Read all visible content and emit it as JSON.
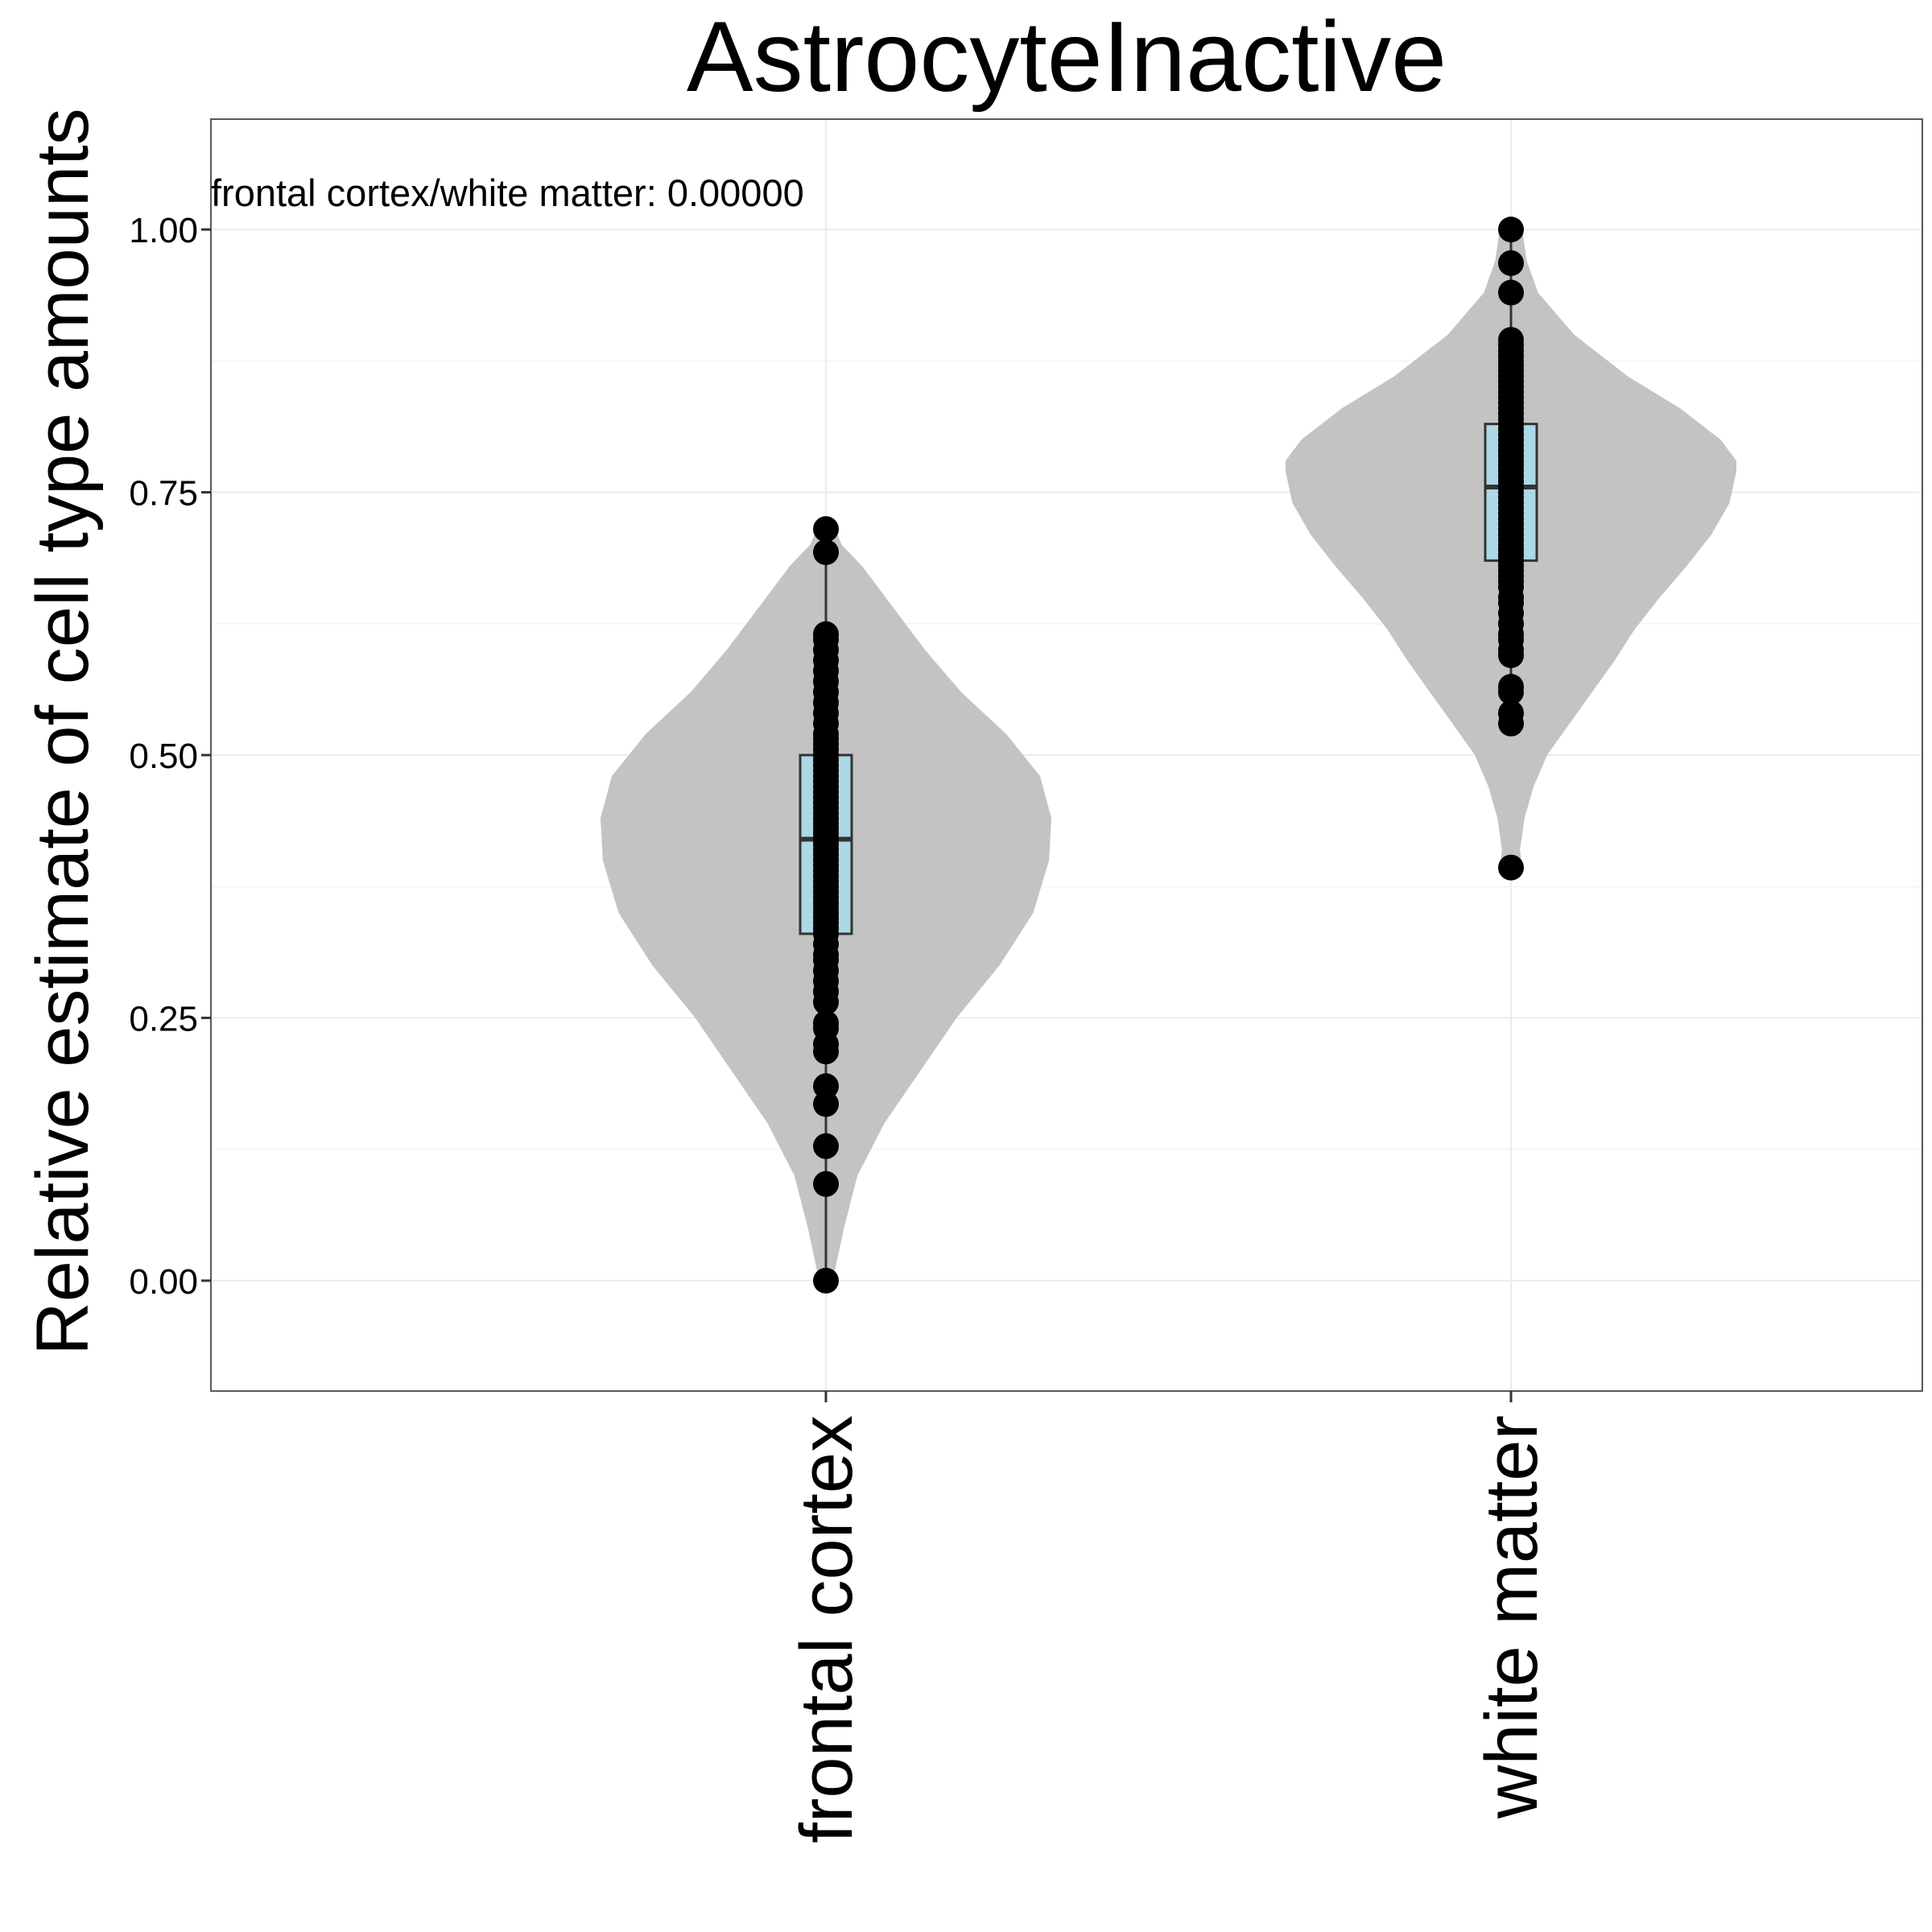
{
  "chart_data": {
    "type": "violin",
    "title": "AstrocyteInactive",
    "xlabel": "",
    "ylabel": "Relative estimate of cell type amounts",
    "annotation": "frontal cortex/white matter: 0.00000",
    "categories": [
      "frontal cortex",
      "white matter"
    ],
    "ylim": [
      -0.105,
      1.105
    ],
    "yticks": [
      0,
      0.25,
      0.5,
      0.75,
      1
    ],
    "ytick_labels": [
      "0.00",
      "0.25",
      "0.50",
      "0.75",
      "1.00"
    ],
    "grid": true,
    "legend": "none",
    "colors": {
      "violin": "#c3c3c3",
      "box_fill": "#add8e6",
      "box_stroke": "#333333",
      "points": "#000000",
      "grid_major": "#ebebeb",
      "grid_minor": "#f5f5f5",
      "panel_border": "#595959"
    },
    "groups": [
      {
        "name": "frontal cortex",
        "box": {
          "q1": 0.33,
          "median": 0.42,
          "q3": 0.5,
          "whisker_low": 0.0,
          "whisker_high": 0.715
        },
        "violin": {
          "y": [
            0.0,
            0.02,
            0.05,
            0.1,
            0.15,
            0.2,
            0.25,
            0.3,
            0.35,
            0.4,
            0.44,
            0.48,
            0.52,
            0.56,
            0.6,
            0.64,
            0.68,
            0.7,
            0.715
          ],
          "density": [
            0.03,
            0.05,
            0.08,
            0.14,
            0.26,
            0.42,
            0.58,
            0.77,
            0.92,
            0.99,
            1.0,
            0.95,
            0.8,
            0.6,
            0.44,
            0.3,
            0.16,
            0.07,
            0.04
          ]
        },
        "points": [
          0.0,
          0.092,
          0.128,
          0.168,
          0.185,
          0.218,
          0.225,
          0.24,
          0.245,
          0.265,
          0.275,
          0.285,
          0.295,
          0.305,
          0.31,
          0.32,
          0.33,
          0.335,
          0.34,
          0.345,
          0.35,
          0.355,
          0.36,
          0.365,
          0.37,
          0.375,
          0.38,
          0.385,
          0.39,
          0.395,
          0.4,
          0.405,
          0.41,
          0.415,
          0.42,
          0.425,
          0.43,
          0.435,
          0.44,
          0.445,
          0.45,
          0.455,
          0.46,
          0.465,
          0.47,
          0.475,
          0.48,
          0.485,
          0.49,
          0.495,
          0.5,
          0.505,
          0.51,
          0.515,
          0.52,
          0.53,
          0.54,
          0.55,
          0.56,
          0.57,
          0.58,
          0.59,
          0.6,
          0.61,
          0.615,
          0.693,
          0.715
        ]
      },
      {
        "name": "white matter",
        "box": {
          "q1": 0.685,
          "median": 0.755,
          "q3": 0.815,
          "whisker_low": 0.53,
          "whisker_high": 1.0
        },
        "violin": {
          "y": [
            0.39,
            0.41,
            0.44,
            0.47,
            0.5,
            0.53,
            0.56,
            0.59,
            0.62,
            0.65,
            0.68,
            0.71,
            0.74,
            0.77,
            0.78,
            0.8,
            0.83,
            0.86,
            0.9,
            0.94,
            0.97,
            1.0
          ],
          "density": [
            0.05,
            0.04,
            0.06,
            0.1,
            0.16,
            0.26,
            0.36,
            0.46,
            0.55,
            0.66,
            0.78,
            0.89,
            0.97,
            1.0,
            1.0,
            0.93,
            0.75,
            0.52,
            0.28,
            0.12,
            0.07,
            0.05
          ]
        },
        "points": [
          0.393,
          0.53,
          0.54,
          0.56,
          0.565,
          0.595,
          0.6,
          0.61,
          0.615,
          0.625,
          0.635,
          0.645,
          0.65,
          0.66,
          0.665,
          0.67,
          0.675,
          0.68,
          0.685,
          0.69,
          0.695,
          0.7,
          0.705,
          0.71,
          0.715,
          0.72,
          0.725,
          0.73,
          0.735,
          0.74,
          0.745,
          0.75,
          0.755,
          0.76,
          0.765,
          0.77,
          0.775,
          0.78,
          0.785,
          0.79,
          0.795,
          0.8,
          0.805,
          0.81,
          0.815,
          0.82,
          0.825,
          0.83,
          0.835,
          0.84,
          0.845,
          0.85,
          0.855,
          0.86,
          0.865,
          0.87,
          0.875,
          0.88,
          0.885,
          0.89,
          0.895,
          0.94,
          0.968,
          1.0
        ]
      }
    ]
  }
}
